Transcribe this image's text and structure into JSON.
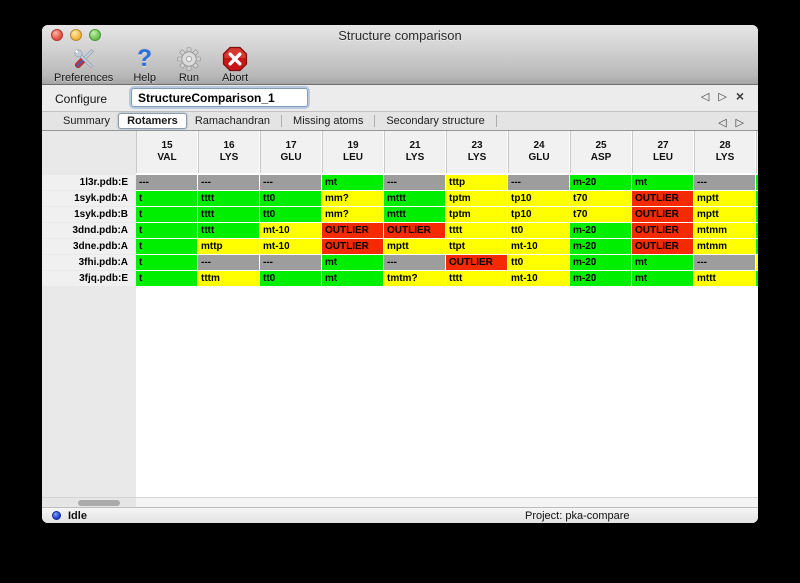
{
  "window": {
    "title": "Structure comparison"
  },
  "toolbar": {
    "buttons": [
      {
        "label": "Preferences",
        "icon": "tools-icon"
      },
      {
        "label": "Help",
        "icon": "question-icon"
      },
      {
        "label": "Run",
        "icon": "gear-icon"
      },
      {
        "label": "Abort",
        "icon": "stop-icon"
      }
    ]
  },
  "configure": {
    "label": "Configure",
    "value": "StructureComparison_1"
  },
  "nav": {
    "prev": "◁",
    "next": "▷",
    "close": "×",
    "help_glyph": "?"
  },
  "tabs": {
    "selected": "Rotamers",
    "items": [
      {
        "label": "Summary"
      },
      {
        "label": "Rotamers"
      },
      {
        "label": "Ramachandran"
      },
      {
        "label": "Missing atoms"
      },
      {
        "label": "Secondary structure"
      }
    ]
  },
  "status_colors": {
    "favored": "#00ee00",
    "allowed": "#ffff00",
    "outlier": "#f52a00",
    "missing": "#9d9d9d"
  },
  "rotamer_table": {
    "columns": [
      {
        "num": "15",
        "res": "VAL"
      },
      {
        "num": "16",
        "res": "LYS"
      },
      {
        "num": "17",
        "res": "GLU"
      },
      {
        "num": "19",
        "res": "LEU"
      },
      {
        "num": "21",
        "res": "LYS"
      },
      {
        "num": "23",
        "res": "LYS"
      },
      {
        "num": "24",
        "res": "GLU"
      },
      {
        "num": "25",
        "res": "ASP"
      },
      {
        "num": "27",
        "res": "LEU"
      },
      {
        "num": "28",
        "res": "LYS"
      }
    ],
    "rows": [
      {
        "label": "1l3r.pdb:E",
        "overflow": "favored",
        "cells": [
          {
            "t": "---",
            "s": "missing"
          },
          {
            "t": "---",
            "s": "missing"
          },
          {
            "t": "---",
            "s": "missing"
          },
          {
            "t": "mt",
            "s": "favored"
          },
          {
            "t": "---",
            "s": "missing"
          },
          {
            "t": "tttp",
            "s": "allowed"
          },
          {
            "t": "---",
            "s": "missing"
          },
          {
            "t": "m-20",
            "s": "favored"
          },
          {
            "t": "mt",
            "s": "favored"
          },
          {
            "t": "---",
            "s": "missing"
          }
        ]
      },
      {
        "label": "1syk.pdb:A",
        "overflow": "favored",
        "cells": [
          {
            "t": "t",
            "s": "favored"
          },
          {
            "t": "tttt",
            "s": "favored"
          },
          {
            "t": "tt0",
            "s": "favored"
          },
          {
            "t": "mm?",
            "s": "allowed"
          },
          {
            "t": "mttt",
            "s": "favored"
          },
          {
            "t": "tptm",
            "s": "allowed"
          },
          {
            "t": "tp10",
            "s": "allowed"
          },
          {
            "t": "t70",
            "s": "allowed"
          },
          {
            "t": "OUTLIER",
            "s": "outlier"
          },
          {
            "t": "mptt",
            "s": "allowed"
          }
        ]
      },
      {
        "label": "1syk.pdb:B",
        "overflow": "favored",
        "cells": [
          {
            "t": "t",
            "s": "favored"
          },
          {
            "t": "tttt",
            "s": "favored"
          },
          {
            "t": "tt0",
            "s": "favored"
          },
          {
            "t": "mm?",
            "s": "allowed"
          },
          {
            "t": "mttt",
            "s": "favored"
          },
          {
            "t": "tptm",
            "s": "allowed"
          },
          {
            "t": "tp10",
            "s": "allowed"
          },
          {
            "t": "t70",
            "s": "allowed"
          },
          {
            "t": "OUTLIER",
            "s": "outlier"
          },
          {
            "t": "mptt",
            "s": "allowed"
          }
        ]
      },
      {
        "label": "3dnd.pdb:A",
        "overflow": "favored",
        "cells": [
          {
            "t": "t",
            "s": "favored"
          },
          {
            "t": "tttt",
            "s": "favored"
          },
          {
            "t": "mt-10",
            "s": "allowed"
          },
          {
            "t": "OUTLIER",
            "s": "outlier"
          },
          {
            "t": "OUTLIER",
            "s": "outlier"
          },
          {
            "t": "tttt",
            "s": "allowed"
          },
          {
            "t": "tt0",
            "s": "allowed"
          },
          {
            "t": "m-20",
            "s": "favored"
          },
          {
            "t": "OUTLIER",
            "s": "outlier"
          },
          {
            "t": "mtmm",
            "s": "allowed"
          }
        ]
      },
      {
        "label": "3dne.pdb:A",
        "overflow": "favored",
        "cells": [
          {
            "t": "t",
            "s": "favored"
          },
          {
            "t": "mttp",
            "s": "allowed"
          },
          {
            "t": "mt-10",
            "s": "allowed"
          },
          {
            "t": "OUTLIER",
            "s": "outlier"
          },
          {
            "t": "mptt",
            "s": "allowed"
          },
          {
            "t": "ttpt",
            "s": "allowed"
          },
          {
            "t": "mt-10",
            "s": "allowed"
          },
          {
            "t": "m-20",
            "s": "favored"
          },
          {
            "t": "OUTLIER",
            "s": "outlier"
          },
          {
            "t": "mtmm",
            "s": "allowed"
          }
        ]
      },
      {
        "label": "3fhi.pdb:A",
        "overflow": "allowed",
        "cells": [
          {
            "t": "t",
            "s": "favored"
          },
          {
            "t": "---",
            "s": "missing"
          },
          {
            "t": "---",
            "s": "missing"
          },
          {
            "t": "mt",
            "s": "favored"
          },
          {
            "t": "---",
            "s": "missing"
          },
          {
            "t": "OUTLIER",
            "s": "outlier"
          },
          {
            "t": "tt0",
            "s": "allowed"
          },
          {
            "t": "m-20",
            "s": "favored"
          },
          {
            "t": "mt",
            "s": "favored"
          },
          {
            "t": "---",
            "s": "missing"
          }
        ]
      },
      {
        "label": "3fjq.pdb:E",
        "overflow": "favored",
        "cells": [
          {
            "t": "t",
            "s": "favored"
          },
          {
            "t": "tttm",
            "s": "allowed"
          },
          {
            "t": "tt0",
            "s": "favored"
          },
          {
            "t": "mt",
            "s": "favored"
          },
          {
            "t": "tmtm?",
            "s": "allowed"
          },
          {
            "t": "tttt",
            "s": "allowed"
          },
          {
            "t": "mt-10",
            "s": "allowed"
          },
          {
            "t": "m-20",
            "s": "favored"
          },
          {
            "t": "mt",
            "s": "favored"
          },
          {
            "t": "mttt",
            "s": "allowed"
          }
        ]
      }
    ]
  },
  "statusbar": {
    "status": "Idle",
    "project": "Project: pka-compare"
  }
}
